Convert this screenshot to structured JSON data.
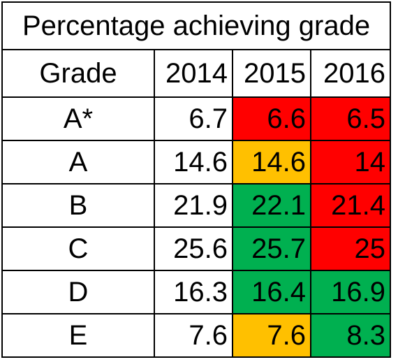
{
  "chart_data": {
    "type": "table",
    "title": "Percentage achieving grade",
    "columns": [
      "Grade",
      "2014",
      "2015",
      "2016"
    ],
    "rows": [
      {
        "grade": "A*",
        "values": [
          "6.7",
          "6.6",
          "6.5"
        ],
        "colors": [
          null,
          "red",
          "red"
        ]
      },
      {
        "grade": "A",
        "values": [
          "14.6",
          "14.6",
          "14"
        ],
        "colors": [
          null,
          "amber",
          "red"
        ]
      },
      {
        "grade": "B",
        "values": [
          "21.9",
          "22.1",
          "21.4"
        ],
        "colors": [
          null,
          "green",
          "red"
        ]
      },
      {
        "grade": "C",
        "values": [
          "25.6",
          "25.7",
          "25"
        ],
        "colors": [
          null,
          "green",
          "red"
        ]
      },
      {
        "grade": "D",
        "values": [
          "16.3",
          "16.4",
          "16.9"
        ],
        "colors": [
          null,
          "green",
          "green"
        ]
      },
      {
        "grade": "E",
        "values": [
          "7.6",
          "7.6",
          "8.3"
        ],
        "colors": [
          null,
          "amber",
          "green"
        ]
      }
    ]
  },
  "palette": {
    "red": "#ff0000",
    "amber": "#ffc000",
    "green": "#00b050"
  }
}
